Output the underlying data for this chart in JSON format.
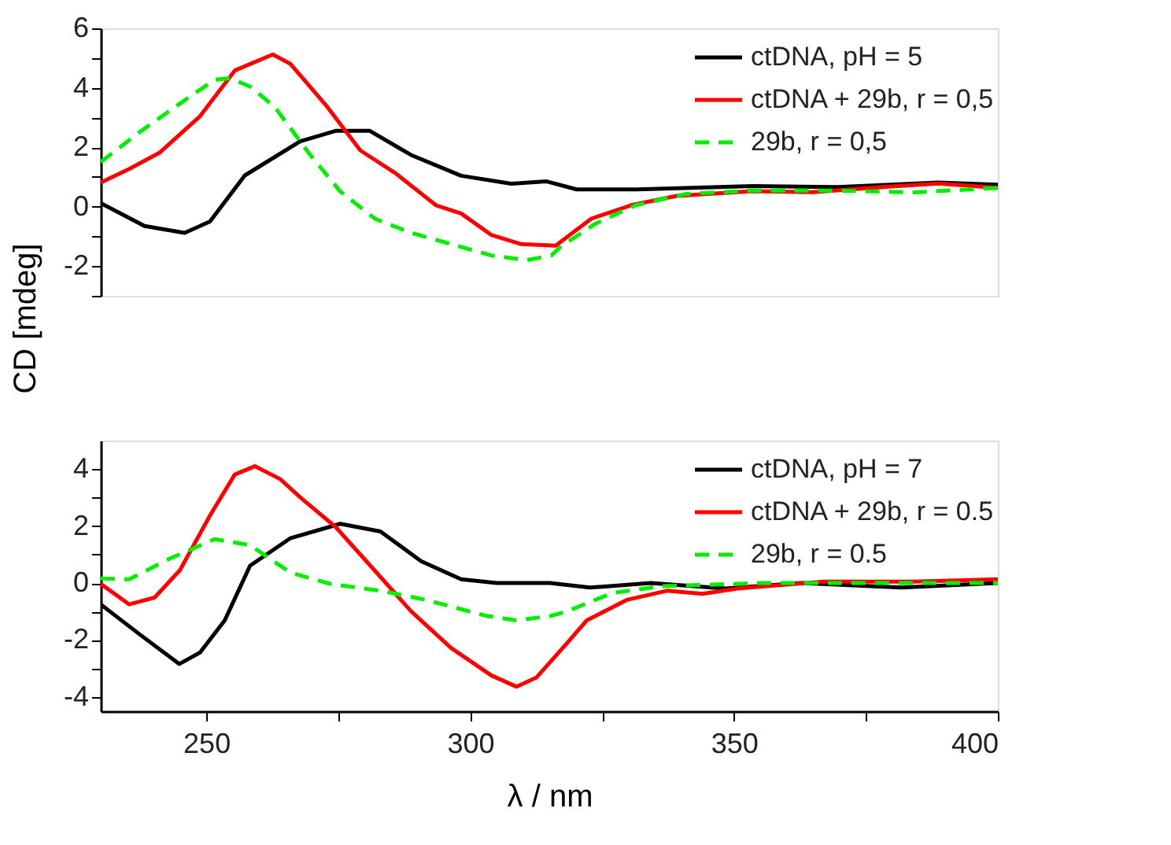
{
  "chart_data": [
    {
      "type": "line",
      "ylabel": "CD [mdeg]",
      "xlim": [
        230,
        400
      ],
      "ylim": [
        -3,
        6
      ],
      "yticks": [
        -2,
        0,
        2,
        4,
        6,
        {
          "value": -3,
          "label": null
        },
        {
          "value": -1,
          "label": null
        },
        {
          "value": 1,
          "label": null
        },
        {
          "value": 3,
          "label": null
        },
        {
          "value": 5,
          "label": null
        }
      ],
      "tick_labels": "y",
      "legend": "top right",
      "grid": false,
      "series": [
        {
          "name": "ctDNA, pH = 5",
          "color": "#000000",
          "line_style": "solid",
          "x": [
            230,
            238.3,
            245.9,
            250.7,
            257.3,
            267.8,
            274.5,
            281,
            288.8,
            298.3,
            307.8,
            314.5,
            320.2,
            331.6,
            353.5,
            369.7,
            388.7,
            400
          ],
          "values": [
            0.12,
            -0.65,
            -0.88,
            -0.5,
            1.05,
            2.2,
            2.55,
            2.55,
            1.74,
            1.04,
            0.77,
            0.85,
            0.58,
            0.58,
            0.69,
            0.66,
            0.81,
            0.74
          ]
        },
        {
          "name": "ctDNA + 29b, r = 0,5",
          "color": "#ff0000",
          "line_style": "solid",
          "x": [
            230,
            235.4,
            241.1,
            248.8,
            255.4,
            262.6,
            265.9,
            272.6,
            279.2,
            285.9,
            293.5,
            298.3,
            304,
            309.7,
            316.2,
            322.9,
            330.5,
            339.1,
            353.5,
            364.9,
            379.2,
            388.7,
            400
          ],
          "values": [
            0.81,
            1.27,
            1.81,
            3.04,
            4.58,
            5.12,
            4.81,
            3.43,
            1.89,
            1.12,
            0.05,
            -0.23,
            -0.95,
            -1.26,
            -1.31,
            -0.41,
            0.05,
            0.36,
            0.52,
            0.49,
            0.67,
            0.78,
            0.63
          ]
        },
        {
          "name": "29b, r = 0,5",
          "color": "#00ee00",
          "line_style": "dashed",
          "x": [
            230,
            237.3,
            245.9,
            251.6,
            254.5,
            258.3,
            263,
            269.7,
            275.4,
            282,
            288.8,
            296.4,
            304,
            310.7,
            315.4,
            317.2,
            323.8,
            331.4,
            341,
            353.5,
            369.7,
            384,
            400
          ],
          "values": [
            1.5,
            2.5,
            3.58,
            4.27,
            4.32,
            4.04,
            3.35,
            1.74,
            0.51,
            -0.41,
            -0.88,
            -1.26,
            -1.64,
            -1.8,
            -1.64,
            -1.34,
            -0.57,
            0.05,
            0.43,
            0.54,
            0.54,
            0.48,
            0.63
          ]
        }
      ]
    },
    {
      "type": "line",
      "xlabel": "λ / nm",
      "xlim": [
        230,
        400
      ],
      "xticks": [
        250,
        300,
        350,
        400,
        {
          "value": 275,
          "label": null
        },
        {
          "value": 325,
          "label": null
        },
        {
          "value": 375,
          "label": null
        }
      ],
      "ylim": [
        -4.5,
        5
      ],
      "yticks": [
        -4,
        -2,
        0,
        2,
        4,
        {
          "value": -3,
          "label": null
        },
        {
          "value": -1,
          "label": null
        },
        {
          "value": 1,
          "label": null
        },
        {
          "value": 3,
          "label": null
        }
      ],
      "legend": "top right",
      "grid": false,
      "series": [
        {
          "name": "ctDNA, pH = 7",
          "color": "#000000",
          "line_style": "solid",
          "x": [
            230,
            237.3,
            244.9,
            248.8,
            253.5,
            258.3,
            265.9,
            275.4,
            283,
            290.7,
            298.3,
            305,
            315.1,
            322.7,
            334.2,
            348.4,
            362.7,
            381.7,
            400
          ],
          "values": [
            -0.75,
            -1.79,
            -2.84,
            -2.44,
            -1.31,
            0.61,
            1.57,
            2.08,
            1.81,
            0.77,
            0.13,
            0,
            0,
            -0.16,
            0,
            -0.19,
            0,
            -0.16,
            0
          ]
        },
        {
          "name": "ctDNA + 29b, r = 0.5",
          "color": "#ff0000",
          "line_style": "solid",
          "x": [
            230,
            235.4,
            240.2,
            245,
            250.7,
            255.4,
            259.2,
            264,
            267.8,
            274.5,
            281.1,
            288.8,
            296.4,
            304,
            308.8,
            312.6,
            318.3,
            322.1,
            329.7,
            337.3,
            344,
            350.7,
            366.9,
            384,
            400
          ],
          "values": [
            -0.03,
            -0.75,
            -0.51,
            0.45,
            2.37,
            3.81,
            4.1,
            3.65,
            3.01,
            1.97,
            0.61,
            -0.99,
            -2.28,
            -3.24,
            -3.64,
            -3.31,
            -2.12,
            -1.31,
            -0.59,
            -0.27,
            -0.38,
            -0.19,
            0.05,
            0.05,
            0.13
          ]
        },
        {
          "name": "29b, r = 0.5",
          "color": "#00ee00",
          "line_style": "dashed",
          "x": [
            230,
            235.4,
            243,
            251.6,
            258.3,
            265.9,
            273.5,
            283,
            291.6,
            303,
            308.8,
            315.4,
            318.3,
            326.9,
            336.4,
            355.5,
            374.5,
            400
          ],
          "values": [
            0.16,
            0.13,
            0.85,
            1.54,
            1.33,
            0.37,
            -0.03,
            -0.27,
            -0.59,
            -1.15,
            -1.31,
            -1.15,
            -1,
            -0.35,
            -0.11,
            0,
            0,
            0
          ]
        }
      ]
    }
  ]
}
